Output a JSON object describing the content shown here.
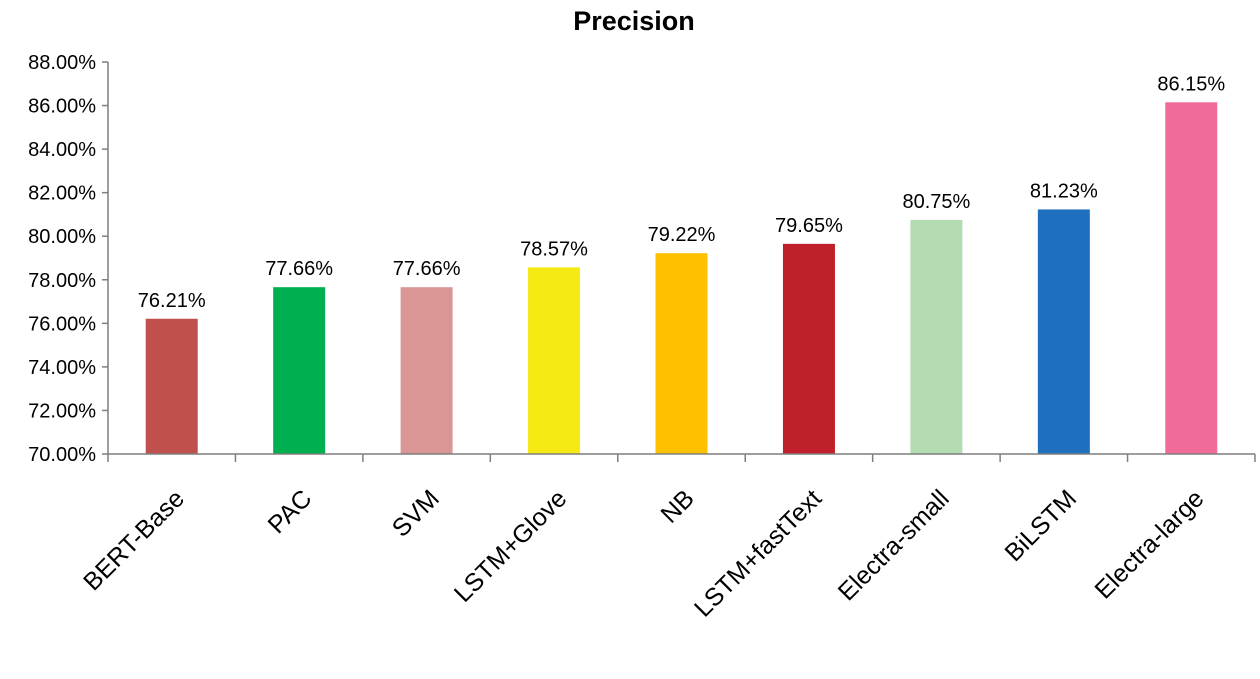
{
  "chart_data": {
    "type": "bar",
    "title": "Precision",
    "xlabel": "",
    "ylabel": "",
    "categories": [
      "BERT-Base",
      "PAC",
      "SVM",
      "LSTM+Glove",
      "NB",
      "LSTM+fastText",
      "Electra-small",
      "BiLSTM",
      "Electra-large"
    ],
    "values": [
      76.21,
      77.66,
      77.66,
      78.57,
      79.22,
      79.65,
      80.75,
      81.23,
      86.15
    ],
    "data_labels": [
      "76.21%",
      "77.66%",
      "77.66%",
      "78.57%",
      "79.22%",
      "79.65%",
      "80.75%",
      "81.23%",
      "86.15%"
    ],
    "bar_colors": [
      "#C0504D",
      "#00B050",
      "#D99694",
      "#F5EA14",
      "#FFC000",
      "#C0202A",
      "#B3DCB3",
      "#1F6FBF",
      "#F06A9A"
    ],
    "ylim": [
      70,
      88
    ],
    "yticks": [
      70,
      72,
      74,
      76,
      78,
      80,
      82,
      84,
      86,
      88
    ],
    "ytick_labels": [
      "70.00%",
      "72.00%",
      "74.00%",
      "76.00%",
      "78.00%",
      "80.00%",
      "82.00%",
      "84.00%",
      "86.00%",
      "88.00%"
    ],
    "grid": false,
    "legend": "none"
  }
}
